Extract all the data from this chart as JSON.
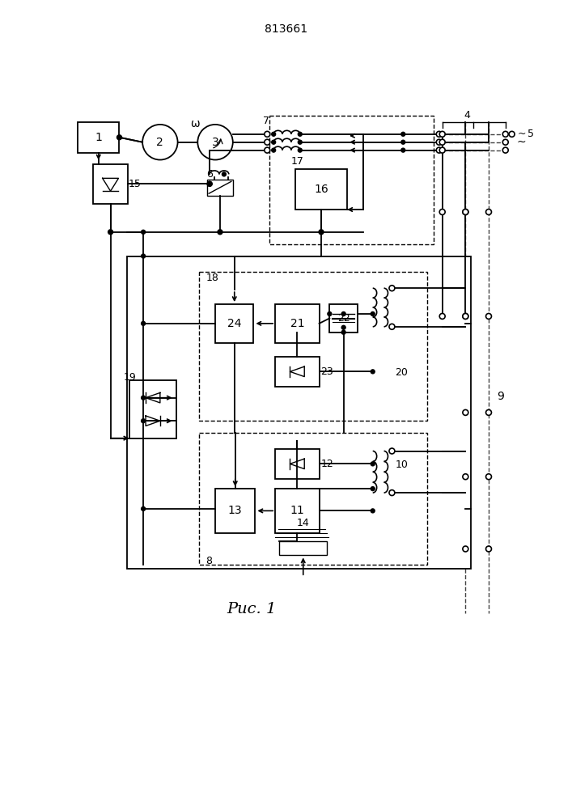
{
  "title": "813661",
  "fig_label": "Рис. 1",
  "bg": "#ffffff",
  "lc": "#000000",
  "dc": "#444444"
}
